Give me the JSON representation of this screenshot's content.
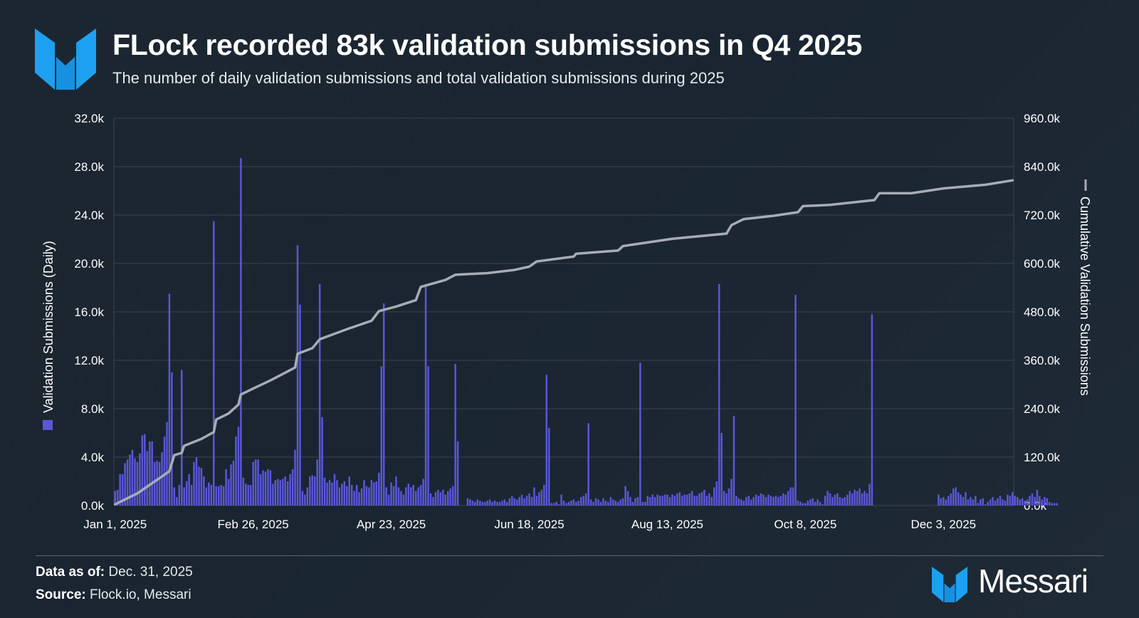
{
  "header": {
    "title": "FLock recorded 83k validation submissions in Q4 2025",
    "subtitle": "The number of daily validation submissions and total validation submissions during 2025",
    "logo_icon": "messari-logo-icon"
  },
  "footer": {
    "data_label": "Data as of:",
    "data_value": "Dec. 31, 2025",
    "source_label": "Source:",
    "source_value": "Flock.io, Messari",
    "brand_name": "Messari",
    "brand_icon": "messari-logo-icon"
  },
  "colors": {
    "bar": "#5a57d8",
    "line": "#a7acb4",
    "grid": "#3a4551",
    "logo": "#1ea0f0"
  },
  "chart_data": {
    "type": "bar",
    "combo": "bar+line",
    "x_type": "date",
    "x_start": "2025-01-01",
    "x_end": "2025-12-31",
    "x_ticks": [
      "Jan 1, 2025",
      "Feb 26, 2025",
      "Apr 23, 2025",
      "Jun 18, 2025",
      "Aug 13, 2025",
      "Oct 8, 2025",
      "Dec 3, 2025"
    ],
    "x_tick_dates": [
      "2025-01-01",
      "2025-02-26",
      "2025-04-23",
      "2025-06-18",
      "2025-08-13",
      "2025-10-08",
      "2025-12-03"
    ],
    "ylabel_left": "Validation Submissions (Daily)",
    "ylabel_right": "Cumulative Validation Submissions",
    "ylim_left": [
      0,
      32000
    ],
    "ylim_right": [
      0,
      960000
    ],
    "y_ticks_left": [
      "0.0k",
      "4.0k",
      "8.0k",
      "12.0k",
      "16.0k",
      "20.0k",
      "24.0k",
      "28.0k",
      "32.0k"
    ],
    "y_ticks_right": [
      "0.0k",
      "120.0k",
      "240.0k",
      "360.0k",
      "480.0k",
      "600.0k",
      "720.0k",
      "840.0k",
      "960.0k"
    ],
    "grid": true,
    "legend": "axis-labels",
    "series": [
      {
        "name": "Validation Submissions (Daily)",
        "type": "bar",
        "axis": "left",
        "daily_values_Jan_to_Dec": [
          1200,
          1300,
          2600,
          2600,
          3500,
          3800,
          4200,
          4600,
          3900,
          3600,
          4300,
          5800,
          5900,
          4500,
          5300,
          5300,
          3600,
          3700,
          3600,
          4400,
          5700,
          6900,
          17500,
          11000,
          1500,
          700,
          1700,
          11200,
          1500,
          2000,
          2600,
          1700,
          3600,
          4000,
          3200,
          3100,
          2400,
          1500,
          1900,
          1700,
          23500,
          1600,
          1600,
          1700,
          1600,
          3000,
          2200,
          3400,
          3700,
          5700,
          6500,
          28700,
          2300,
          1800,
          1700,
          1700,
          3600,
          3800,
          3800,
          2600,
          2900,
          2800,
          3000,
          2900,
          1800,
          2100,
          2200,
          2100,
          2200,
          2400,
          2000,
          2600,
          3000,
          4600,
          21500,
          16600,
          1200,
          900,
          1500,
          2400,
          2500,
          2400,
          3800,
          18300,
          7300,
          2300,
          1900,
          2100,
          1900,
          2600,
          2100,
          1500,
          1800,
          2000,
          1600,
          2400,
          1700,
          1200,
          1700,
          1100,
          1400,
          2100,
          1600,
          1500,
          2100,
          1900,
          2000,
          2700,
          11500,
          16700,
          1500,
          900,
          1900,
          1600,
          2400,
          1500,
          1200,
          900,
          1500,
          1800,
          1500,
          1700,
          1200,
          1500,
          1700,
          2200,
          18300,
          11500,
          1000,
          700,
          1100,
          1300,
          1100,
          1300,
          900,
          1200,
          1400,
          1600,
          11700,
          5300,
          0,
          0,
          0,
          600,
          500,
          400,
          300,
          500,
          400,
          300,
          300,
          400,
          500,
          300,
          400,
          300,
          300,
          400,
          500,
          300,
          600,
          800,
          600,
          500,
          700,
          900,
          600,
          800,
          1000,
          700,
          1500,
          800,
          1100,
          1300,
          1700,
          10800,
          6400,
          200,
          200,
          300,
          100,
          900,
          400,
          200,
          300,
          400,
          500,
          300,
          400,
          700,
          800,
          1000,
          6800,
          500,
          300,
          600,
          500,
          300,
          600,
          400,
          300,
          700,
          500,
          400,
          300,
          500,
          600,
          1600,
          1200,
          700,
          300,
          600,
          700,
          11800,
          300,
          300,
          800,
          700,
          900,
          700,
          900,
          800,
          800,
          900,
          900,
          700,
          900,
          800,
          1000,
          1100,
          800,
          900,
          900,
          1000,
          1200,
          800,
          800,
          1000,
          1100,
          1300,
          800,
          1000,
          700,
          1500,
          2000,
          18300,
          6000,
          1200,
          1000,
          1400,
          2200,
          7400,
          800,
          600,
          500,
          400,
          700,
          800,
          500,
          700,
          900,
          800,
          1000,
          900,
          700,
          900,
          800,
          700,
          800,
          700,
          800,
          1000,
          900,
          1200,
          1500,
          1500,
          17400,
          400,
          300,
          200,
          200,
          400,
          500,
          600,
          300,
          500,
          300,
          100,
          800,
          1200,
          1000,
          700,
          900,
          1000,
          700,
          600,
          700,
          900,
          1200,
          1000,
          1300,
          1200,
          1400,
          1000,
          1200,
          1000,
          1800,
          15800,
          0,
          0,
          0,
          0,
          0,
          0,
          0,
          0,
          0,
          0,
          0,
          0,
          0,
          0,
          0,
          0,
          0,
          0,
          0,
          0,
          0,
          0,
          0,
          0,
          0,
          0,
          900,
          600,
          700,
          500,
          800,
          1000,
          1400,
          1500,
          1100,
          900,
          700,
          1100,
          500,
          700,
          500,
          800,
          200,
          500,
          600,
          100,
          300,
          500,
          700,
          400,
          600,
          800,
          500,
          400,
          900,
          800,
          1100,
          800,
          700,
          500,
          600,
          400,
          500,
          800,
          1000,
          700,
          1300,
          800,
          500,
          700,
          600,
          300,
          200,
          200,
          200
        ]
      },
      {
        "name": "Cumulative Validation Submissions",
        "type": "line",
        "axis": "right",
        "points": [
          {
            "date": "2025-01-01",
            "value": 3000
          },
          {
            "date": "2025-01-10",
            "value": 30000
          },
          {
            "date": "2025-01-20",
            "value": 72000
          },
          {
            "date": "2025-01-23",
            "value": 85000
          },
          {
            "date": "2025-01-25",
            "value": 125000
          },
          {
            "date": "2025-01-28",
            "value": 130000
          },
          {
            "date": "2025-01-29",
            "value": 148000
          },
          {
            "date": "2025-02-05",
            "value": 165000
          },
          {
            "date": "2025-02-10",
            "value": 182000
          },
          {
            "date": "2025-02-11",
            "value": 213000
          },
          {
            "date": "2025-02-16",
            "value": 228000
          },
          {
            "date": "2025-02-20",
            "value": 250000
          },
          {
            "date": "2025-02-21",
            "value": 275000
          },
          {
            "date": "2025-02-26",
            "value": 290000
          },
          {
            "date": "2025-03-05",
            "value": 310000
          },
          {
            "date": "2025-03-15",
            "value": 342000
          },
          {
            "date": "2025-03-16",
            "value": 376000
          },
          {
            "date": "2025-03-22",
            "value": 390000
          },
          {
            "date": "2025-03-25",
            "value": 412000
          },
          {
            "date": "2025-03-28",
            "value": 419000
          },
          {
            "date": "2025-04-05",
            "value": 437000
          },
          {
            "date": "2025-04-15",
            "value": 458000
          },
          {
            "date": "2025-04-18",
            "value": 482000
          },
          {
            "date": "2025-04-25",
            "value": 493000
          },
          {
            "date": "2025-05-03",
            "value": 509000
          },
          {
            "date": "2025-05-05",
            "value": 542000
          },
          {
            "date": "2025-05-15",
            "value": 559000
          },
          {
            "date": "2025-05-19",
            "value": 572000
          },
          {
            "date": "2025-06-01",
            "value": 576000
          },
          {
            "date": "2025-06-12",
            "value": 584000
          },
          {
            "date": "2025-06-18",
            "value": 592000
          },
          {
            "date": "2025-06-21",
            "value": 605000
          },
          {
            "date": "2025-07-06",
            "value": 617000
          },
          {
            "date": "2025-07-07",
            "value": 624000
          },
          {
            "date": "2025-07-24",
            "value": 632000
          },
          {
            "date": "2025-07-26",
            "value": 643000
          },
          {
            "date": "2025-08-15",
            "value": 661000
          },
          {
            "date": "2025-09-06",
            "value": 674000
          },
          {
            "date": "2025-09-08",
            "value": 695000
          },
          {
            "date": "2025-09-13",
            "value": 710000
          },
          {
            "date": "2025-09-25",
            "value": 718000
          },
          {
            "date": "2025-10-05",
            "value": 727000
          },
          {
            "date": "2025-10-07",
            "value": 742000
          },
          {
            "date": "2025-10-18",
            "value": 745000
          },
          {
            "date": "2025-11-05",
            "value": 757000
          },
          {
            "date": "2025-11-07",
            "value": 774000
          },
          {
            "date": "2025-11-20",
            "value": 774000
          },
          {
            "date": "2025-12-03",
            "value": 786000
          },
          {
            "date": "2025-12-20",
            "value": 795000
          },
          {
            "date": "2025-12-31",
            "value": 806000
          }
        ]
      }
    ]
  }
}
